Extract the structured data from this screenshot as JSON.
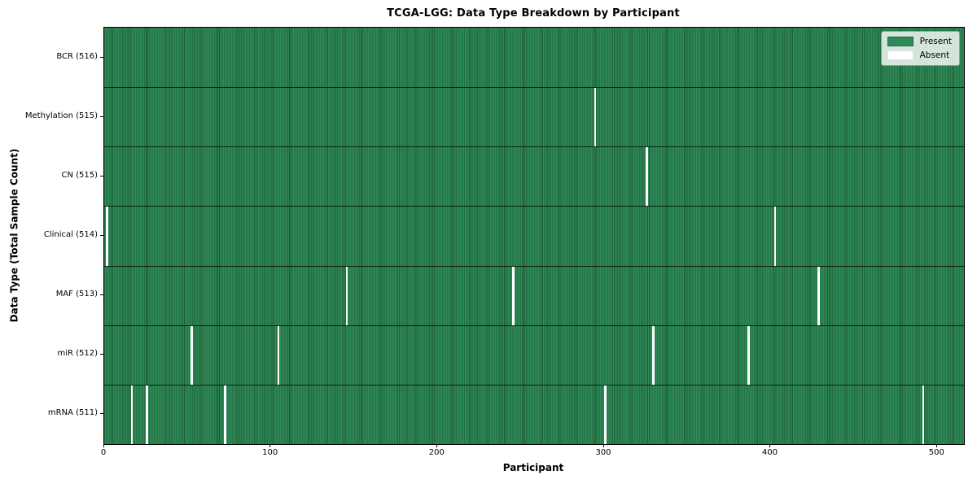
{
  "chart_data": {
    "type": "heatmap",
    "title": "TCGA-LGG: Data Type Breakdown by Participant",
    "xlabel": "Participant",
    "ylabel": "Data Type (Total Sample Count)",
    "legend": [
      "Present",
      "Absent"
    ],
    "legend_position": "upper right",
    "n_participants": 516,
    "x_range": [
      0,
      516
    ],
    "x_ticks": [
      0,
      100,
      200,
      300,
      400,
      500
    ],
    "rows": [
      {
        "label": "BCR (516)",
        "data_type": "BCR",
        "present_count": 516,
        "absent_participants": []
      },
      {
        "label": "Methylation (515)",
        "data_type": "Methylation",
        "present_count": 515,
        "absent_participants": [
          294
        ]
      },
      {
        "label": "CN (515)",
        "data_type": "CN",
        "present_count": 515,
        "absent_participants": [
          325
        ]
      },
      {
        "label": "Clinical (514)",
        "data_type": "Clinical",
        "present_count": 514,
        "absent_participants": [
          1,
          402
        ]
      },
      {
        "label": "MAF (513)",
        "data_type": "MAF",
        "present_count": 513,
        "absent_participants": [
          145,
          245,
          428
        ]
      },
      {
        "label": "miR (512)",
        "data_type": "miR",
        "present_count": 512,
        "absent_participants": [
          52,
          104,
          329,
          386
        ]
      },
      {
        "label": "mRNA (511)",
        "data_type": "mRNA",
        "present_count": 511,
        "absent_participants": [
          16,
          25,
          72,
          300,
          491
        ]
      }
    ],
    "colors": {
      "present": "#2e8b57",
      "bar_edge": "#1f5c3a",
      "absent": "#ffffff",
      "row_separator": "#0a120a"
    },
    "grid": false
  }
}
